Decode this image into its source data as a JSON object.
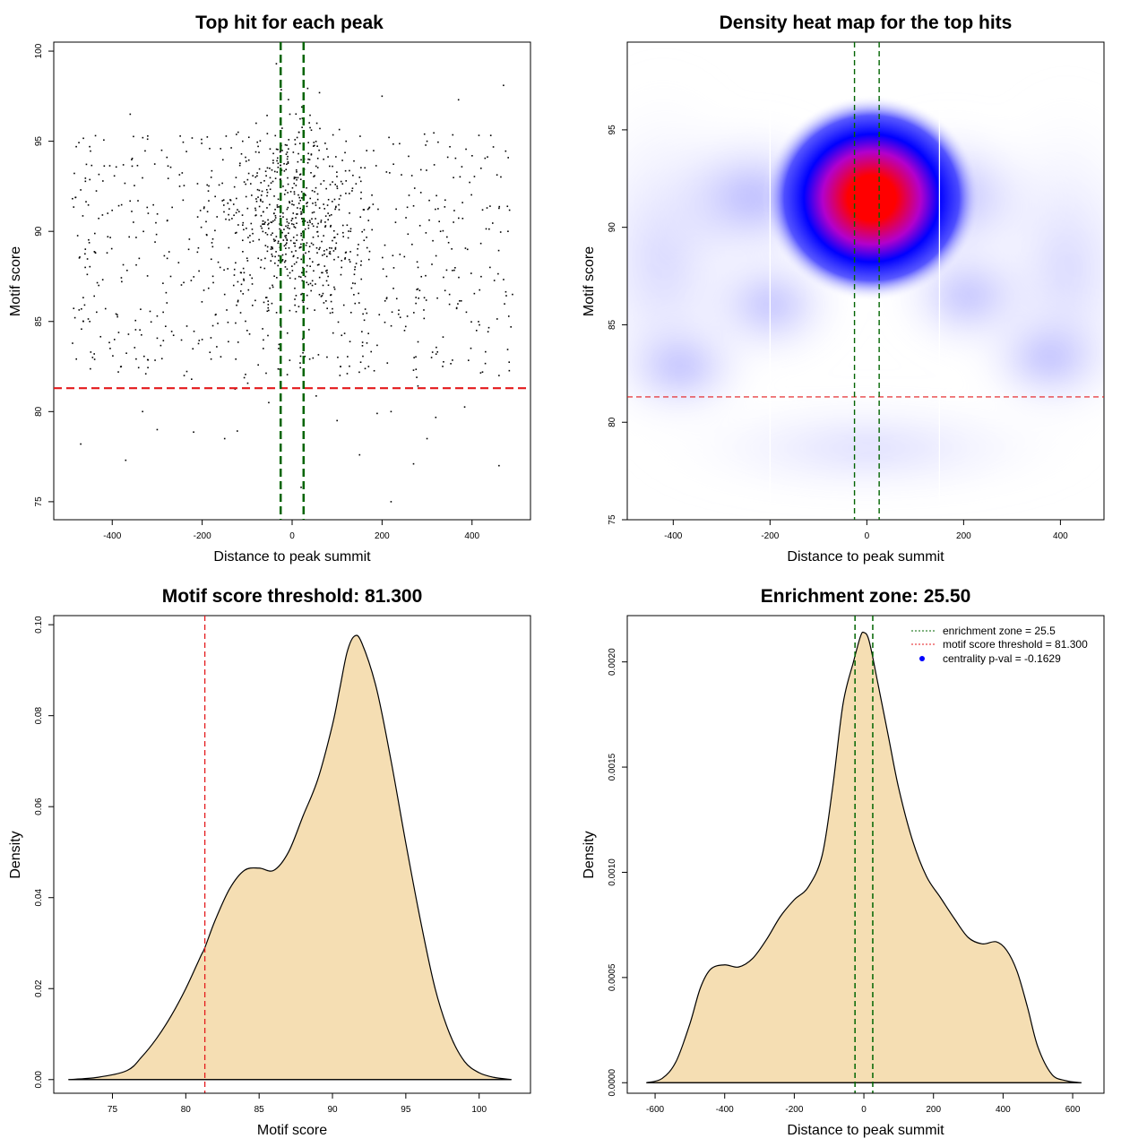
{
  "colors": {
    "threshold_line": "#e41a1c",
    "zone_line": "#006400",
    "density_fill": "#f5deb3",
    "point": "#000000",
    "heat_low": "#ffffff",
    "heat_mid": "#0000ff",
    "heat_high": "#ff0000",
    "legend_dot": "#0000ff"
  },
  "chart_data": [
    {
      "id": "scatter",
      "type": "scatter",
      "title": "Top hit for each peak",
      "xlabel": "Distance to peak summit",
      "ylabel": "Motif score",
      "xlim": [
        -530,
        530
      ],
      "ylim": [
        74,
        100.5
      ],
      "xticks": [
        -400,
        -200,
        0,
        200,
        400
      ],
      "yticks": [
        75,
        80,
        85,
        90,
        95,
        100
      ],
      "threshold": 81.3,
      "zone": [
        -25.5,
        25.5
      ],
      "sample_points": [
        [
          -480,
          94.7
        ],
        [
          -470,
          92.3
        ],
        [
          -460,
          88.0
        ],
        [
          -450,
          85.0
        ],
        [
          -440,
          83.2
        ],
        [
          -430,
          87.0
        ],
        [
          -410,
          91.0
        ],
        [
          -395,
          84.0
        ],
        [
          -380,
          82.5
        ],
        [
          -360,
          96.5
        ],
        [
          -350,
          81.3
        ],
        [
          -340,
          88.5
        ],
        [
          -320,
          91.0
        ],
        [
          -300,
          85.3
        ],
        [
          -290,
          94.5
        ],
        [
          -270,
          87.5
        ],
        [
          -250,
          92.5
        ],
        [
          -240,
          82.0
        ],
        [
          -230,
          89.0
        ],
        [
          -210,
          90.8
        ],
        [
          -200,
          84.0
        ],
        [
          -180,
          93.0
        ],
        [
          -160,
          88.0
        ],
        [
          -150,
          86.5
        ],
        [
          -130,
          91.5
        ],
        [
          -120,
          95.5
        ],
        [
          -110,
          89.5
        ],
        [
          -100,
          84.5
        ],
        [
          -90,
          92.0
        ],
        [
          -80,
          96.0
        ],
        [
          -70,
          88.0
        ],
        [
          -60,
          90.5
        ],
        [
          -50,
          93.5
        ],
        [
          -45,
          86.0
        ],
        [
          -40,
          91.0
        ],
        [
          -35,
          99.3
        ],
        [
          -30,
          83.5
        ],
        [
          -25,
          89.0
        ],
        [
          -20,
          92.5
        ],
        [
          -15,
          94.8
        ],
        [
          -10,
          90.2
        ],
        [
          -5,
          87.7
        ],
        [
          0,
          91.5
        ],
        [
          5,
          93.0
        ],
        [
          10,
          89.5
        ],
        [
          15,
          95.5
        ],
        [
          20,
          86.5
        ],
        [
          25,
          91.8
        ],
        [
          30,
          88.8
        ],
        [
          35,
          93.8
        ],
        [
          40,
          90.5
        ],
        [
          45,
          87.0
        ],
        [
          50,
          92.2
        ],
        [
          55,
          96.0
        ],
        [
          60,
          89.0
        ],
        [
          70,
          94.0
        ],
        [
          80,
          91.0
        ],
        [
          90,
          85.5
        ],
        [
          100,
          92.5
        ],
        [
          110,
          88.0
        ],
        [
          120,
          95.0
        ],
        [
          130,
          90.0
        ],
        [
          140,
          86.0
        ],
        [
          150,
          93.0
        ],
        [
          160,
          89.5
        ],
        [
          170,
          82.5
        ],
        [
          180,
          91.5
        ],
        [
          200,
          97.5
        ],
        [
          210,
          87.5
        ],
        [
          230,
          90.5
        ],
        [
          250,
          84.5
        ],
        [
          260,
          92.0
        ],
        [
          280,
          88.0
        ],
        [
          300,
          95.0
        ],
        [
          310,
          83.0
        ],
        [
          330,
          90.0
        ],
        [
          350,
          86.5
        ],
        [
          370,
          97.3
        ],
        [
          390,
          89.0
        ],
        [
          410,
          84.5
        ],
        [
          420,
          93.5
        ],
        [
          440,
          88.0
        ],
        [
          460,
          82.0
        ],
        [
          470,
          98.1
        ],
        [
          480,
          90.0
        ],
        [
          490,
          86.5
        ],
        [
          -300,
          79.0
        ],
        [
          -150,
          78.5
        ],
        [
          100,
          79.5
        ],
        [
          220,
          80.0
        ],
        [
          300,
          78.5
        ],
        [
          -370,
          77.3
        ],
        [
          20,
          75.8
        ],
        [
          220,
          75.0
        ],
        [
          270,
          77.1
        ],
        [
          460,
          77.0
        ],
        [
          150,
          77.6
        ],
        [
          -470,
          78.2
        ],
        [
          -110,
          95.0
        ],
        [
          60,
          94.5
        ],
        [
          -5,
          96.5
        ],
        [
          30,
          92.0
        ],
        [
          -60,
          88.5
        ],
        [
          80,
          87.5
        ],
        [
          -20,
          90.8
        ],
        [
          10,
          93.3
        ],
        [
          -80,
          91.8
        ],
        [
          120,
          92.8
        ],
        [
          -130,
          87.0
        ],
        [
          160,
          91.2
        ]
      ]
    },
    {
      "id": "heatmap",
      "type": "heatmap",
      "title": "Density heat map for the top hits",
      "xlabel": "Distance to peak summit",
      "ylabel": "Motif score",
      "xlim": [
        -495,
        490
      ],
      "ylim": [
        75,
        99.5
      ],
      "xticks": [
        -400,
        -200,
        0,
        200,
        400
      ],
      "yticks": [
        75,
        80,
        85,
        90,
        95
      ],
      "threshold": 81.3,
      "zone": [
        -25.5,
        25.5
      ],
      "vertical_white_lines": [
        -200,
        150
      ],
      "peak": {
        "x": 10,
        "y": 91.5
      }
    },
    {
      "id": "score_density",
      "type": "area",
      "title": "Motif score threshold: 81.300",
      "xlabel": "Motif score",
      "ylabel": "Density",
      "xlim": [
        71,
        103.5
      ],
      "ylim": [
        -0.003,
        0.102
      ],
      "xticks": [
        75,
        80,
        85,
        90,
        95,
        100
      ],
      "yticks": [
        0.0,
        0.02,
        0.04,
        0.06,
        0.08,
        0.1
      ],
      "ytick_labels": [
        "0.00",
        "0.02",
        "0.04",
        "0.06",
        "0.08",
        "0.10"
      ],
      "threshold": 81.3,
      "x": [
        72,
        74,
        76,
        77,
        78,
        79,
        80,
        81,
        81.3,
        82,
        83,
        84,
        85,
        86,
        87,
        88,
        89,
        90,
        90.5,
        91,
        91.5,
        92,
        93,
        94,
        95,
        96,
        97,
        98,
        99,
        100,
        101,
        102.2
      ],
      "y": [
        0.0,
        0.0005,
        0.002,
        0.005,
        0.009,
        0.014,
        0.02,
        0.027,
        0.029,
        0.035,
        0.042,
        0.046,
        0.0465,
        0.046,
        0.05,
        0.058,
        0.066,
        0.078,
        0.086,
        0.094,
        0.0975,
        0.096,
        0.086,
        0.07,
        0.052,
        0.035,
        0.02,
        0.01,
        0.004,
        0.0015,
        0.0005,
        0.0
      ]
    },
    {
      "id": "distance_density",
      "type": "area",
      "title": "Enrichment zone: 25.50",
      "xlabel": "Distance to peak summit",
      "ylabel": "Density",
      "xlim": [
        -680,
        690
      ],
      "ylim": [
        -5e-05,
        0.00222
      ],
      "xticks": [
        -600,
        -400,
        -200,
        0,
        200,
        400,
        600
      ],
      "yticks": [
        0.0,
        0.0005,
        0.001,
        0.0015,
        0.002
      ],
      "ytick_labels": [
        "0.0000",
        "0.0005",
        "0.0010",
        "0.0015",
        "0.0020"
      ],
      "zone": [
        -25.5,
        25.5
      ],
      "x": [
        -625,
        -580,
        -540,
        -500,
        -470,
        -440,
        -400,
        -360,
        -320,
        -280,
        -240,
        -200,
        -160,
        -120,
        -90,
        -60,
        -30,
        -10,
        0,
        15,
        40,
        70,
        100,
        140,
        180,
        220,
        260,
        300,
        340,
        380,
        410,
        440,
        470,
        500,
        540,
        580,
        625
      ],
      "y": [
        0.0,
        2e-05,
        0.0001,
        0.00028,
        0.00045,
        0.00054,
        0.00056,
        0.00055,
        0.00059,
        0.00068,
        0.00079,
        0.00087,
        0.00093,
        0.00108,
        0.0014,
        0.0018,
        0.002,
        0.00212,
        0.00214,
        0.0021,
        0.0019,
        0.00165,
        0.0014,
        0.00115,
        0.00098,
        0.00088,
        0.00078,
        0.00069,
        0.00066,
        0.00067,
        0.00063,
        0.00053,
        0.00036,
        0.00017,
        4e-05,
        1e-05,
        0.0
      ]
    }
  ],
  "legend": [
    {
      "style": "dotted-green",
      "label": "enrichment zone = 25.5"
    },
    {
      "style": "dotted-red",
      "label": "motif score threshold = 81.300"
    },
    {
      "style": "blue-dot",
      "label": "centrality p-val = -0.1629"
    }
  ]
}
